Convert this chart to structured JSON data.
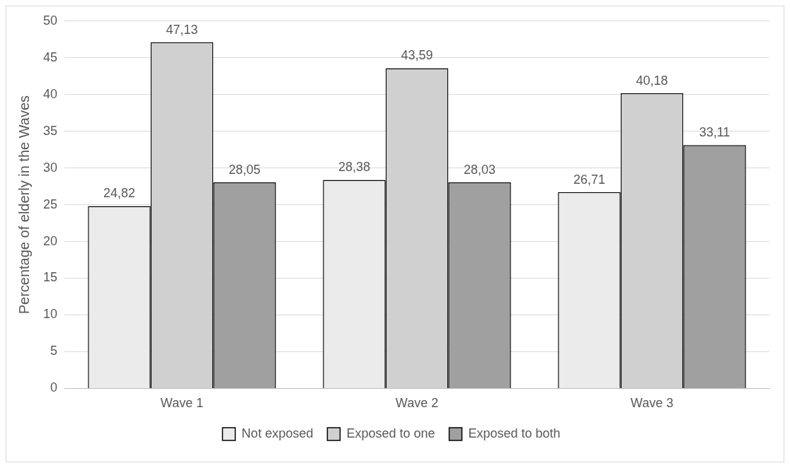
{
  "chart_data": {
    "type": "bar",
    "ylabel": "Percentage of elderly in the Waves",
    "categories": [
      "Wave 1",
      "Wave 2",
      "Wave 3"
    ],
    "series": [
      {
        "name": "Not exposed",
        "color": "#ebebeb",
        "values": [
          24.82,
          28.38,
          26.71
        ],
        "value_labels": [
          "24,82",
          "28,38",
          "26,71"
        ]
      },
      {
        "name": "Exposed to one",
        "color": "#d0d0d0",
        "values": [
          47.13,
          43.59,
          40.18
        ],
        "value_labels": [
          "47,13",
          "43,59",
          "40,18"
        ]
      },
      {
        "name": "Exposed to both",
        "color": "#a0a0a0",
        "values": [
          28.05,
          28.03,
          33.11
        ],
        "value_labels": [
          "28,05",
          "28,03",
          "33,11"
        ]
      }
    ],
    "ylim": [
      0,
      50
    ],
    "yticks": [
      0,
      5,
      10,
      15,
      20,
      25,
      30,
      35,
      40,
      45,
      50
    ],
    "grid": "y",
    "legend": "bottom"
  }
}
